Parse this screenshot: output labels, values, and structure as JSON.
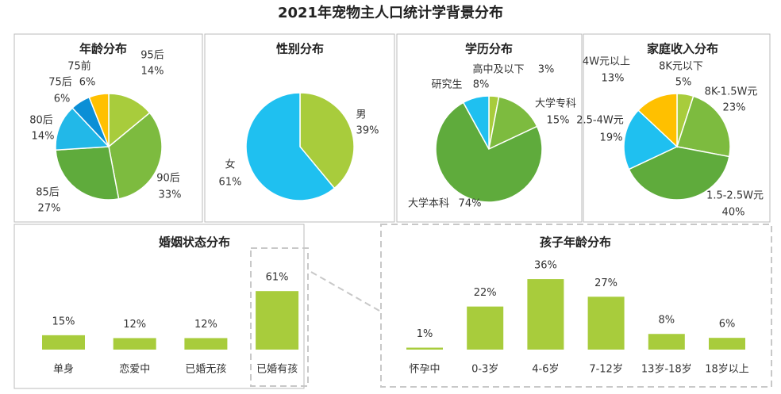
{
  "title": "2021年宠物主人口统计学背景分布",
  "chart_data": [
    {
      "type": "pie",
      "title": "年龄分布",
      "categories": [
        "95后",
        "90后",
        "85后",
        "80后",
        "75后",
        "75前"
      ],
      "values": [
        14,
        33,
        27,
        14,
        6,
        6
      ],
      "value_labels": [
        "14%",
        "33%",
        "27%",
        "14%",
        "6%",
        "6%"
      ],
      "colors": [
        "#a8cc3c",
        "#7dbb3f",
        "#5fab3c",
        "#22b8e8",
        "#0b8fd6",
        "#ffc000"
      ]
    },
    {
      "type": "pie",
      "title": "性别分布",
      "categories": [
        "男",
        "女"
      ],
      "values": [
        39,
        61
      ],
      "value_labels": [
        "39%",
        "61%"
      ],
      "colors": [
        "#a8cc3c",
        "#1fc0f0"
      ]
    },
    {
      "type": "pie",
      "title": "学历分布",
      "categories": [
        "高中及以下",
        "大学专科",
        "大学本科",
        "研究生"
      ],
      "values": [
        3,
        15,
        74,
        8
      ],
      "value_labels": [
        "3%",
        "15%",
        "74%",
        "8%"
      ],
      "colors": [
        "#a8cc3c",
        "#7dbb3f",
        "#5fab3c",
        "#1fc0f0"
      ]
    },
    {
      "type": "pie",
      "title": "家庭收入分布",
      "categories": [
        "8K元以下",
        "8K-1.5W元",
        "1.5-2.5W元",
        "2.5-4W元",
        "4W元以上"
      ],
      "values": [
        5,
        23,
        40,
        19,
        13
      ],
      "value_labels": [
        "5%",
        "23%",
        "40%",
        "19%",
        "13%"
      ],
      "colors": [
        "#a8cc3c",
        "#7dbb3f",
        "#5fab3c",
        "#1fc0f0",
        "#ffc000"
      ]
    },
    {
      "type": "bar",
      "title": "婚姻状态分布",
      "categories": [
        "单身",
        "恋爱中",
        "已婚无孩",
        "已婚有孩"
      ],
      "values": [
        15,
        12,
        12,
        61
      ],
      "value_labels": [
        "15%",
        "12%",
        "12%",
        "61%"
      ],
      "color": "#a8cc3c"
    },
    {
      "type": "bar",
      "title": "孩子年龄分布",
      "categories": [
        "怀孕中",
        "0-3岁",
        "4-6岁",
        "7-12岁",
        "13岁-18岁",
        "18岁以上"
      ],
      "values": [
        1,
        22,
        36,
        27,
        8,
        6
      ],
      "value_labels": [
        "1%",
        "22%",
        "36%",
        "27%",
        "8%",
        "6%"
      ],
      "color": "#a8cc3c"
    }
  ]
}
